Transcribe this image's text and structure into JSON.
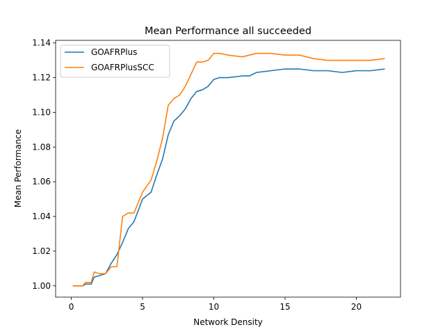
{
  "chart_data": {
    "type": "line",
    "title": "Mean Performance all succeeded",
    "xlabel": "Network Density",
    "ylabel": "Mean Performance",
    "xlim": [
      -1.1,
      23.1
    ],
    "ylim": [
      0.9935,
      1.1415
    ],
    "xticks": [
      0,
      5,
      10,
      15,
      20
    ],
    "xtick_labels": [
      "0",
      "5",
      "10",
      "15",
      "20"
    ],
    "yticks": [
      1.0,
      1.02,
      1.04,
      1.06,
      1.08,
      1.1,
      1.12,
      1.14
    ],
    "ytick_labels": [
      "1.00",
      "1.02",
      "1.04",
      "1.06",
      "1.08",
      "1.10",
      "1.12",
      "1.14"
    ],
    "grid": false,
    "legend_position": "top-left",
    "series": [
      {
        "name": "GOAFRPlus",
        "color": "#1f77b4",
        "points": [
          [
            0.1,
            1.0
          ],
          [
            0.5,
            1.0
          ],
          [
            0.8,
            1.0
          ],
          [
            1.0,
            1.001
          ],
          [
            1.4,
            1.001
          ],
          [
            1.6,
            1.005
          ],
          [
            2.0,
            1.006
          ],
          [
            2.4,
            1.007
          ],
          [
            2.8,
            1.013
          ],
          [
            3.2,
            1.018
          ],
          [
            3.6,
            1.025
          ],
          [
            4.0,
            1.033
          ],
          [
            4.4,
            1.037
          ],
          [
            5.0,
            1.05
          ],
          [
            5.6,
            1.054
          ],
          [
            6.0,
            1.064
          ],
          [
            6.4,
            1.073
          ],
          [
            6.8,
            1.087
          ],
          [
            7.2,
            1.095
          ],
          [
            7.6,
            1.098
          ],
          [
            8.0,
            1.102
          ],
          [
            8.4,
            1.108
          ],
          [
            8.8,
            1.112
          ],
          [
            9.2,
            1.113
          ],
          [
            9.6,
            1.115
          ],
          [
            10.0,
            1.119
          ],
          [
            10.4,
            1.12
          ],
          [
            11.0,
            1.12
          ],
          [
            12.0,
            1.121
          ],
          [
            12.5,
            1.121
          ],
          [
            13.0,
            1.123
          ],
          [
            14.0,
            1.124
          ],
          [
            15.0,
            1.125
          ],
          [
            16.0,
            1.125
          ],
          [
            17.0,
            1.124
          ],
          [
            18.0,
            1.124
          ],
          [
            19.0,
            1.123
          ],
          [
            20.0,
            1.124
          ],
          [
            21.0,
            1.124
          ],
          [
            22.0,
            1.125
          ]
        ]
      },
      {
        "name": "GOAFRPlusSCC",
        "color": "#ff7f0e",
        "points": [
          [
            0.1,
            1.0
          ],
          [
            0.5,
            1.0
          ],
          [
            0.8,
            1.0
          ],
          [
            1.0,
            1.002
          ],
          [
            1.4,
            1.002
          ],
          [
            1.6,
            1.008
          ],
          [
            2.0,
            1.007
          ],
          [
            2.4,
            1.007
          ],
          [
            2.8,
            1.011
          ],
          [
            3.2,
            1.011
          ],
          [
            3.6,
            1.04
          ],
          [
            4.0,
            1.042
          ],
          [
            4.4,
            1.042
          ],
          [
            5.0,
            1.054
          ],
          [
            5.6,
            1.061
          ],
          [
            6.0,
            1.072
          ],
          [
            6.4,
            1.085
          ],
          [
            6.8,
            1.104
          ],
          [
            7.2,
            1.108
          ],
          [
            7.6,
            1.11
          ],
          [
            8.0,
            1.115
          ],
          [
            8.4,
            1.122
          ],
          [
            8.8,
            1.129
          ],
          [
            9.2,
            1.129
          ],
          [
            9.6,
            1.13
          ],
          [
            10.0,
            1.134
          ],
          [
            10.4,
            1.134
          ],
          [
            11.0,
            1.133
          ],
          [
            12.0,
            1.132
          ],
          [
            12.5,
            1.133
          ],
          [
            13.0,
            1.134
          ],
          [
            14.0,
            1.134
          ],
          [
            15.0,
            1.133
          ],
          [
            16.0,
            1.133
          ],
          [
            17.0,
            1.131
          ],
          [
            18.0,
            1.13
          ],
          [
            19.0,
            1.13
          ],
          [
            20.0,
            1.13
          ],
          [
            21.0,
            1.13
          ],
          [
            22.0,
            1.131
          ]
        ]
      }
    ]
  }
}
